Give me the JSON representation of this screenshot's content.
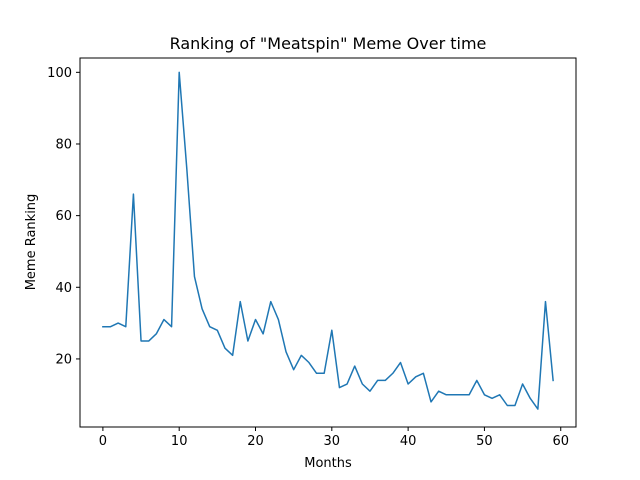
{
  "chart_data": {
    "type": "line",
    "title": "Ranking of \"Meatspin\" Meme Over time",
    "xlabel": "Months",
    "ylabel": "Meme Ranking",
    "xlim": [
      -3,
      62
    ],
    "ylim": [
      1,
      104
    ],
    "xticks": [
      0,
      10,
      20,
      30,
      40,
      50,
      60
    ],
    "yticks": [
      20,
      40,
      60,
      80,
      100
    ],
    "grid": false,
    "legend": "none",
    "line_color": "#1f77b4",
    "series": [
      {
        "x": [
          0,
          1,
          2,
          3,
          4,
          5,
          6,
          7,
          8,
          9,
          10,
          11,
          12,
          13,
          14,
          15,
          16,
          17,
          18,
          19,
          20,
          21,
          22,
          23,
          24,
          25,
          26,
          27,
          28,
          29,
          30,
          31,
          32,
          33,
          34,
          35,
          36,
          37,
          38,
          39,
          40,
          41,
          42,
          43,
          44,
          45,
          46,
          47,
          48,
          49,
          50,
          51,
          52,
          53,
          54,
          55,
          56,
          57,
          58,
          59
        ],
        "values": [
          29,
          29,
          30,
          29,
          66,
          25,
          25,
          27,
          31,
          29,
          100,
          73,
          43,
          34,
          29,
          28,
          23,
          21,
          36,
          25,
          31,
          27,
          36,
          31,
          22,
          17,
          21,
          19,
          16,
          16,
          28,
          12,
          13,
          18,
          13,
          11,
          14,
          14,
          16,
          19,
          13,
          15,
          16,
          8,
          11,
          10,
          10,
          10,
          10,
          14,
          10,
          9,
          10,
          7,
          7,
          13,
          9,
          6,
          36,
          14
        ]
      }
    ]
  }
}
